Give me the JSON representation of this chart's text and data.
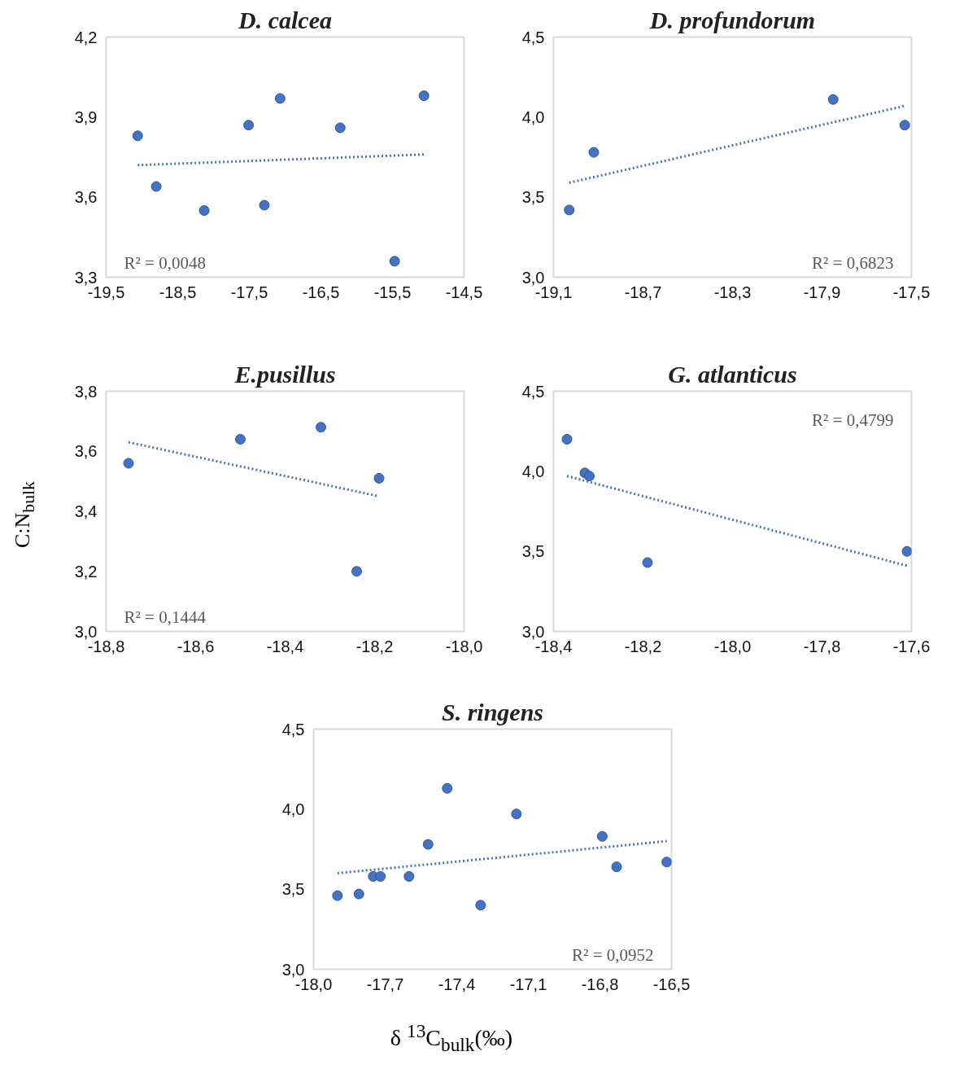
{
  "chart_data": [
    {
      "type": "scatter",
      "title": "D. calcea",
      "grid": false,
      "xlim": [
        -19.5,
        -14.5
      ],
      "ylim": [
        3.3,
        4.2
      ],
      "xticks": [
        {
          "value": -19.5,
          "label": "-19,5"
        },
        {
          "value": -18.5,
          "label": "-18,5"
        },
        {
          "value": -17.5,
          "label": "-17,5"
        },
        {
          "value": -16.5,
          "label": "-16,5"
        },
        {
          "value": -15.5,
          "label": "-15,5"
        },
        {
          "value": -14.5,
          "label": "-14,5"
        }
      ],
      "yticks": [
        {
          "value": 3.3,
          "label": "3,3"
        },
        {
          "value": 3.6,
          "label": "3,6"
        },
        {
          "value": 3.9,
          "label": "3,9"
        },
        {
          "value": 4.2,
          "label": "4,2"
        }
      ],
      "annotations": [
        "R² = 0,0048"
      ],
      "series": [
        {
          "marker": "circle",
          "color": "#4472c4",
          "x": [
            -19.06,
            -18.8,
            -18.13,
            -17.51,
            -17.29,
            -17.07,
            -16.23,
            -15.47,
            -15.06
          ],
          "values": [
            3.83,
            3.64,
            3.55,
            3.87,
            3.57,
            3.97,
            3.86,
            3.36,
            3.98
          ]
        },
        {
          "type": "line",
          "line_style": "dotted",
          "color": "#4472c4",
          "x": [
            -19.06,
            -15.06
          ],
          "values": [
            3.72,
            3.76
          ]
        }
      ]
    },
    {
      "type": "scatter",
      "title": "D. profundorum",
      "grid": false,
      "xlim": [
        -19.1,
        -17.5
      ],
      "ylim": [
        3.0,
        4.5
      ],
      "xticks": [
        {
          "value": -19.1,
          "label": "-19,1"
        },
        {
          "value": -18.7,
          "label": "-18,7"
        },
        {
          "value": -18.3,
          "label": "-18,3"
        },
        {
          "value": -17.9,
          "label": "-17,9"
        },
        {
          "value": -17.5,
          "label": "-17,5"
        }
      ],
      "yticks": [
        {
          "value": 3.0,
          "label": "3,0"
        },
        {
          "value": 3.5,
          "label": "3,5"
        },
        {
          "value": 4.0,
          "label": "4,0"
        },
        {
          "value": 4.5,
          "label": "4,5"
        }
      ],
      "annotations": [
        "R² = 0,6823"
      ],
      "series": [
        {
          "marker": "circle",
          "color": "#4472c4",
          "x": [
            -19.03,
            -18.92,
            -17.85,
            -17.53
          ],
          "values": [
            3.42,
            3.78,
            4.11,
            3.95
          ]
        },
        {
          "type": "line",
          "line_style": "dotted",
          "color": "#4472c4",
          "x": [
            -19.03,
            -17.53
          ],
          "values": [
            3.59,
            4.07
          ]
        }
      ]
    },
    {
      "type": "scatter",
      "title": "E.pusillus",
      "ylabel": "C:N$_{bulk}$",
      "grid": false,
      "xlim": [
        -18.8,
        -18.0
      ],
      "ylim": [
        3.0,
        3.8
      ],
      "xticks": [
        {
          "value": -18.8,
          "label": "-18,8"
        },
        {
          "value": -18.6,
          "label": "-18,6"
        },
        {
          "value": -18.4,
          "label": "-18,4"
        },
        {
          "value": -18.2,
          "label": "-18,2"
        },
        {
          "value": -18.0,
          "label": "-18,0"
        }
      ],
      "yticks": [
        {
          "value": 3.0,
          "label": "3,0"
        },
        {
          "value": 3.2,
          "label": "3,2"
        },
        {
          "value": 3.4,
          "label": "3,4"
        },
        {
          "value": 3.6,
          "label": "3,6"
        },
        {
          "value": 3.8,
          "label": "3,8"
        }
      ],
      "annotations": [
        "R² = 0,1444"
      ],
      "series": [
        {
          "marker": "circle",
          "color": "#4472c4",
          "x": [
            -18.75,
            -18.5,
            -18.32,
            -18.19,
            -18.24
          ],
          "values": [
            3.56,
            3.64,
            3.68,
            3.51,
            3.2
          ]
        },
        {
          "type": "line",
          "line_style": "dotted",
          "color": "#4472c4",
          "x": [
            -18.75,
            -18.19
          ],
          "values": [
            3.63,
            3.45
          ]
        }
      ]
    },
    {
      "type": "scatter",
      "title": "G. atlanticus",
      "grid": false,
      "xlim": [
        -18.4,
        -17.6
      ],
      "ylim": [
        3.0,
        4.5
      ],
      "xticks": [
        {
          "value": -18.4,
          "label": "-18,4"
        },
        {
          "value": -18.2,
          "label": "-18,2"
        },
        {
          "value": -18.0,
          "label": "-18,0"
        },
        {
          "value": -17.8,
          "label": "-17,8"
        },
        {
          "value": -17.6,
          "label": "-17,6"
        }
      ],
      "yticks": [
        {
          "value": 3.0,
          "label": "3,0"
        },
        {
          "value": 3.5,
          "label": "3,5"
        },
        {
          "value": 4.0,
          "label": "4,0"
        },
        {
          "value": 4.5,
          "label": "4,5"
        }
      ],
      "annotations": [
        "R² = 0,4799"
      ],
      "series": [
        {
          "marker": "circle",
          "color": "#4472c4",
          "x": [
            -18.37,
            -18.33,
            -18.32,
            -18.19,
            -17.61
          ],
          "values": [
            4.2,
            3.99,
            3.97,
            3.43,
            3.5
          ]
        },
        {
          "type": "line",
          "line_style": "dotted",
          "color": "#4472c4",
          "x": [
            -18.37,
            -17.61
          ],
          "values": [
            3.97,
            3.41
          ]
        }
      ]
    },
    {
      "type": "scatter",
      "title": "S. ringens",
      "xlabel": "δ $^{13}$C$_{bulk}$(‰)",
      "grid": false,
      "xlim": [
        -18.0,
        -16.5
      ],
      "ylim": [
        3.0,
        4.5
      ],
      "xticks": [
        {
          "value": -18.0,
          "label": "-18,0"
        },
        {
          "value": -17.7,
          "label": "-17,7"
        },
        {
          "value": -17.4,
          "label": "-17,4"
        },
        {
          "value": -17.1,
          "label": "-17,1"
        },
        {
          "value": -16.8,
          "label": "-16,8"
        },
        {
          "value": -16.5,
          "label": "-16,5"
        }
      ],
      "yticks": [
        {
          "value": 3.0,
          "label": "3,0"
        },
        {
          "value": 3.5,
          "label": "3,5"
        },
        {
          "value": 4.0,
          "label": "4,0"
        },
        {
          "value": 4.5,
          "label": "4,5"
        }
      ],
      "annotations": [
        "R² = 0,0952"
      ],
      "series": [
        {
          "marker": "circle",
          "color": "#4472c4",
          "x": [
            -17.9,
            -17.81,
            -17.75,
            -17.72,
            -17.6,
            -17.52,
            -17.44,
            -17.3,
            -17.15,
            -16.79,
            -16.73,
            -16.52
          ],
          "values": [
            3.46,
            3.47,
            3.58,
            3.58,
            3.58,
            3.78,
            4.13,
            3.4,
            3.97,
            3.83,
            3.64,
            3.67
          ]
        },
        {
          "type": "line",
          "line_style": "dotted",
          "color": "#4472c4",
          "x": [
            -17.9,
            -16.52
          ],
          "values": [
            3.6,
            3.8
          ]
        }
      ]
    }
  ]
}
